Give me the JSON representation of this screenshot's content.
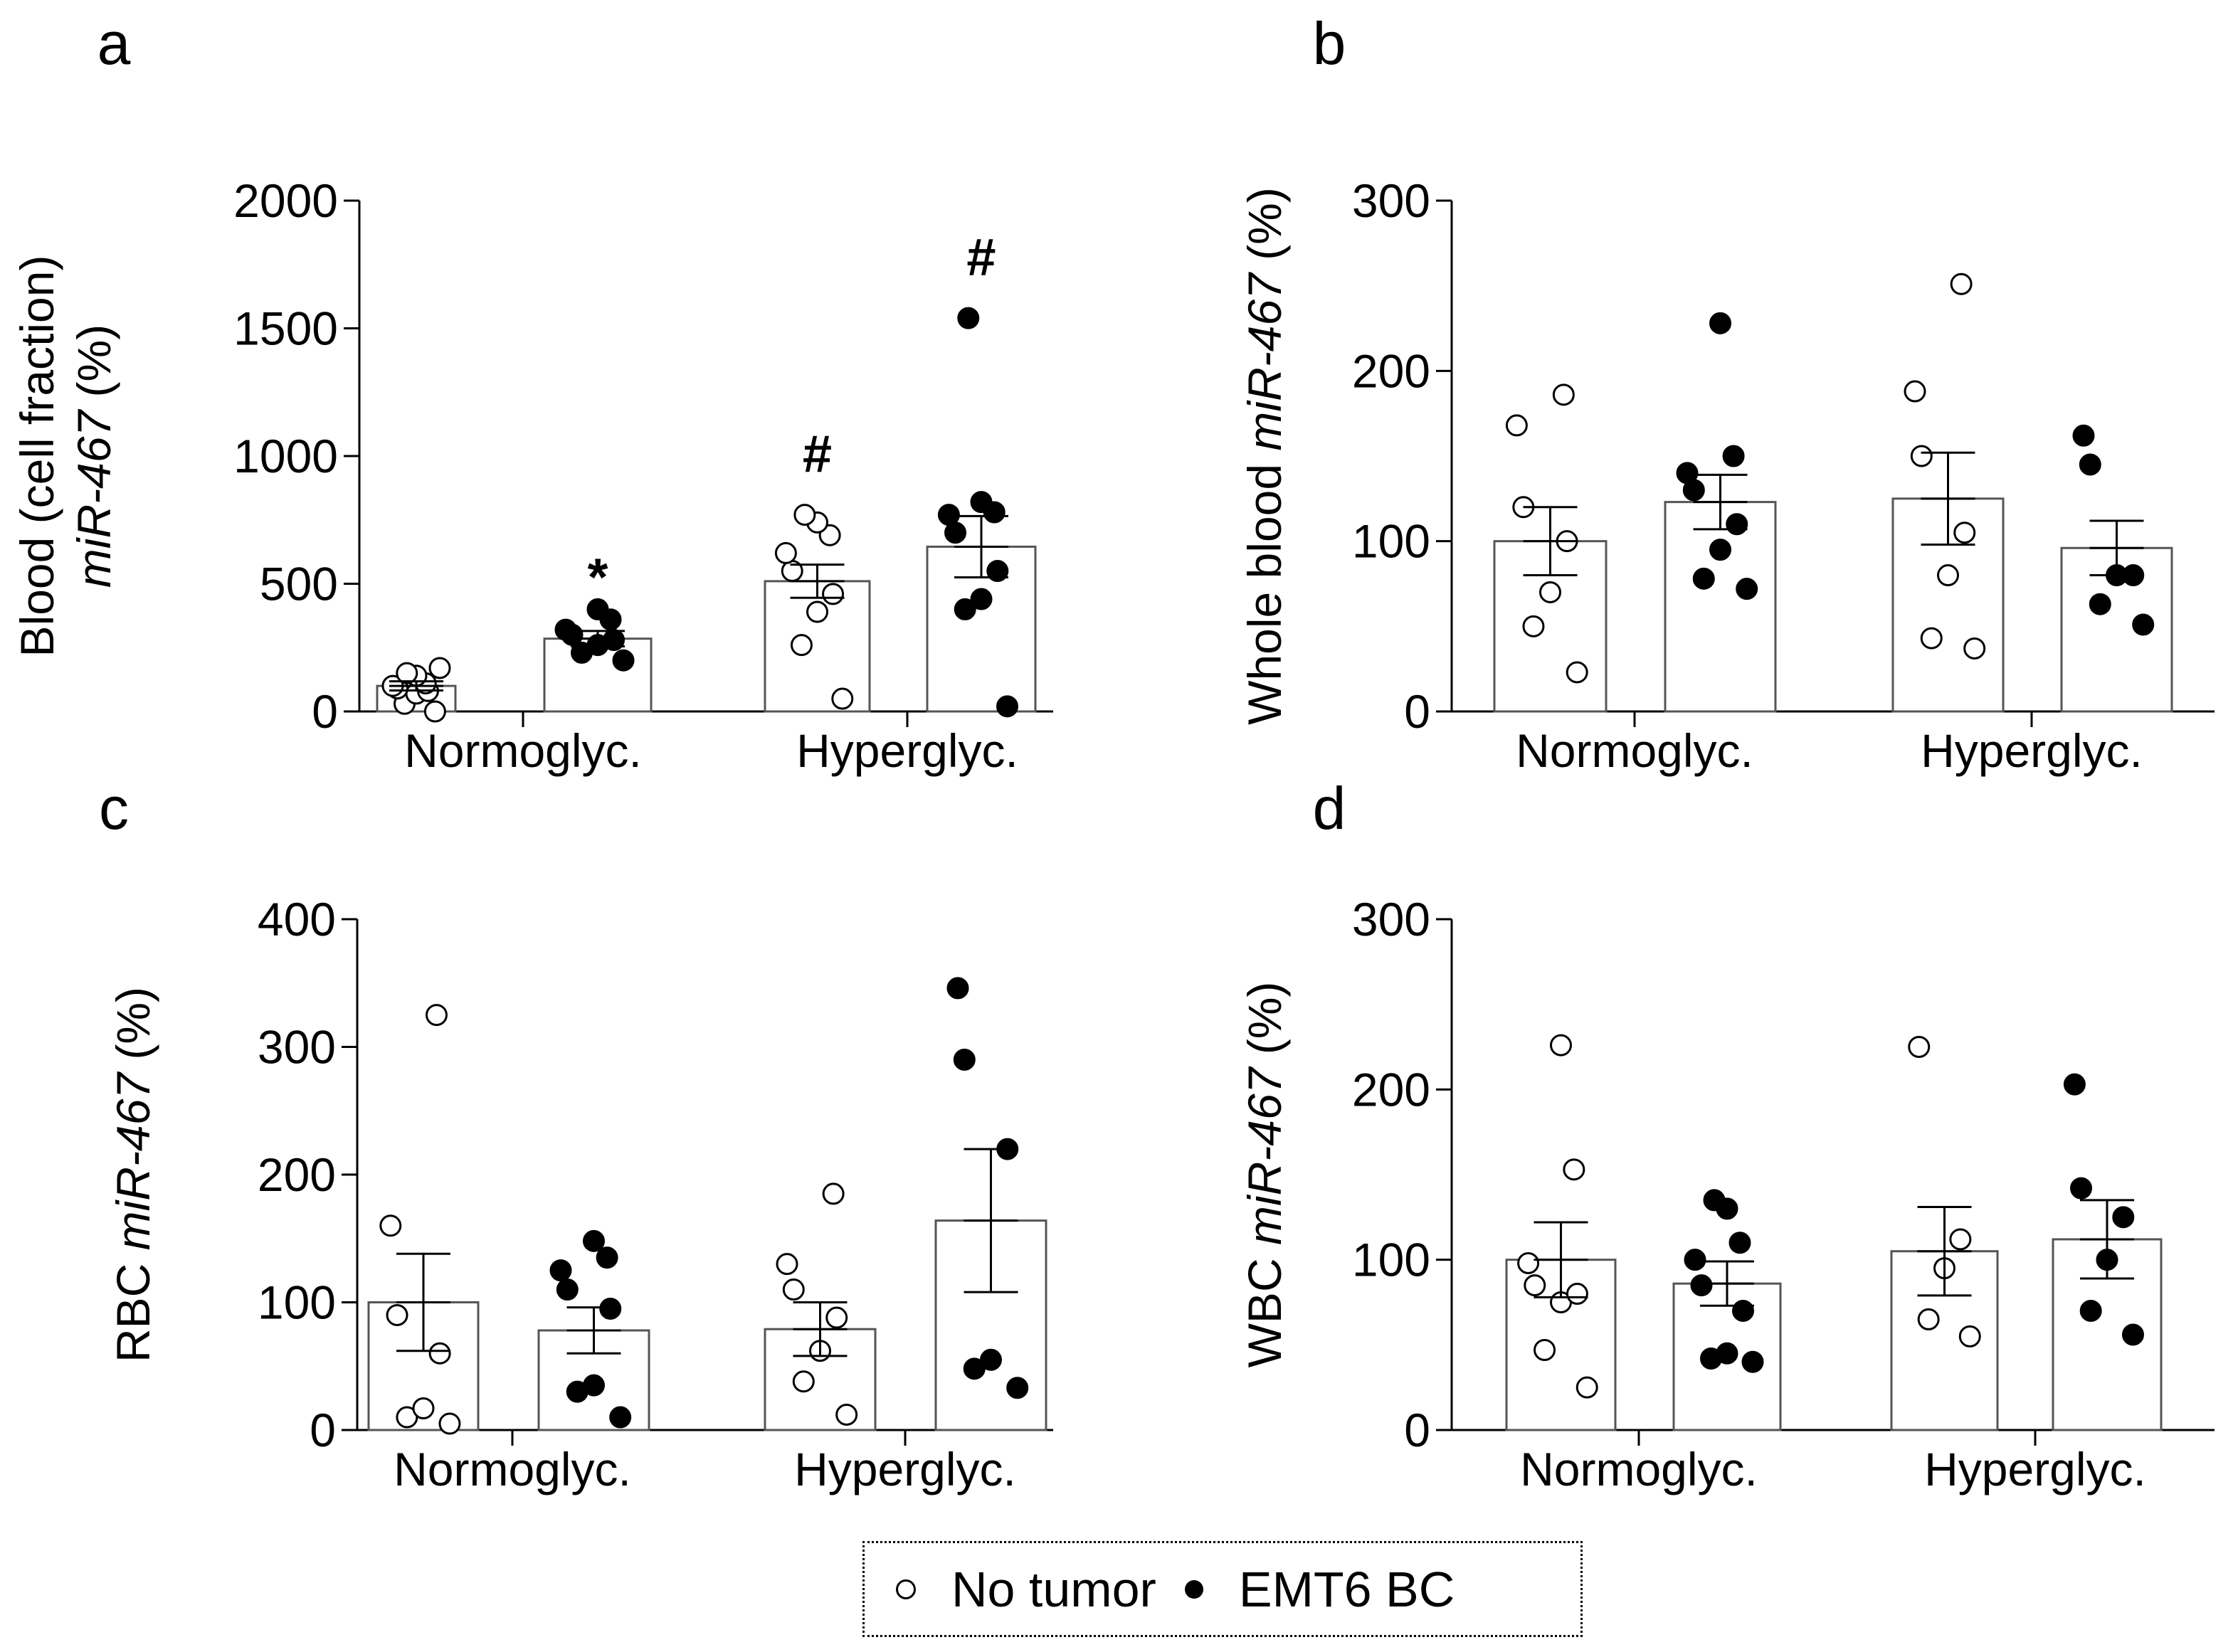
{
  "figure": {
    "legend": {
      "no_tumor": "No tumor",
      "emt6": "EMT6 BC"
    }
  },
  "chart_data": [
    {
      "panel": "a",
      "type": "bar",
      "ylabel_line1": "Blood (cell fraction)",
      "ylabel_pre": "",
      "ylabel_italic": "miR-467",
      "ylabel_post": " (%)",
      "ylim": [
        0,
        2000
      ],
      "yticks": [
        0,
        500,
        1000,
        1500,
        2000
      ],
      "categories": [
        "Normoglyc.",
        "Hyperglyc."
      ],
      "series": [
        {
          "name": "No tumor",
          "fill": "open",
          "means": [
            100,
            510
          ],
          "sem": [
            18,
            65
          ],
          "annotations": [
            "",
            "#"
          ],
          "points": [
            [
              0,
              30,
              70,
              80,
              90,
              100,
              110,
              140,
              150,
              170
            ],
            [
              50,
              260,
              390,
              460,
              550,
              620,
              690,
              740,
              770
            ]
          ]
        },
        {
          "name": "EMT6 BC",
          "fill": "filled",
          "means": [
            285,
            645
          ],
          "sem": [
            30,
            120
          ],
          "annotations": [
            "*",
            "#"
          ],
          "points": [
            [
              200,
              230,
              260,
              280,
              300,
              320,
              360,
              400
            ],
            [
              20,
              400,
              440,
              550,
              700,
              770,
              780,
              820,
              1540
            ]
          ]
        }
      ]
    },
    {
      "panel": "b",
      "type": "bar",
      "ylabel_line1": "",
      "ylabel_pre": "Whole blood ",
      "ylabel_italic": "miR-467",
      "ylabel_post": " (%)",
      "ylim": [
        0,
        300
      ],
      "yticks": [
        0,
        100,
        200,
        300
      ],
      "categories": [
        "Normoglyc.",
        "Hyperglyc."
      ],
      "series": [
        {
          "name": "No tumor",
          "fill": "open",
          "means": [
            100,
            125
          ],
          "sem": [
            20,
            27
          ],
          "annotations": [
            "",
            ""
          ],
          "points": [
            [
              23,
              50,
              70,
              100,
              120,
              168,
              186
            ],
            [
              37,
              43,
              80,
              105,
              150,
              188,
              251
            ]
          ]
        },
        {
          "name": "EMT6 BC",
          "fill": "filled",
          "means": [
            123,
            96
          ],
          "sem": [
            16,
            16
          ],
          "annotations": [
            "",
            ""
          ],
          "points": [
            [
              72,
              78,
              95,
              110,
              130,
              140,
              150,
              228
            ],
            [
              51,
              63,
              80,
              80,
              145,
              162
            ]
          ]
        }
      ]
    },
    {
      "panel": "c",
      "type": "bar",
      "ylabel_line1": "",
      "ylabel_pre": "RBC ",
      "ylabel_italic": "miR-467",
      "ylabel_post": " (%)",
      "ylim": [
        0,
        400
      ],
      "yticks": [
        0,
        100,
        200,
        300,
        400
      ],
      "categories": [
        "Normoglyc.",
        "Hyperglyc."
      ],
      "series": [
        {
          "name": "No tumor",
          "fill": "open",
          "means": [
            100,
            79
          ],
          "sem": [
            38,
            21
          ],
          "annotations": [
            "",
            ""
          ],
          "points": [
            [
              5,
              10,
              17,
              60,
              90,
              160,
              325
            ],
            [
              12,
              38,
              62,
              88,
              110,
              130,
              185
            ]
          ]
        },
        {
          "name": "EMT6 BC",
          "fill": "filled",
          "means": [
            78,
            164
          ],
          "sem": [
            18,
            56
          ],
          "annotations": [
            "",
            ""
          ],
          "points": [
            [
              10,
              30,
              35,
              95,
              110,
              125,
              135,
              148
            ],
            [
              33,
              48,
              55,
              220,
              290,
              346
            ]
          ]
        }
      ]
    },
    {
      "panel": "d",
      "type": "bar",
      "ylabel_line1": "",
      "ylabel_pre": "WBC ",
      "ylabel_italic": "miR-467",
      "ylabel_post": " (%)",
      "ylim": [
        0,
        300
      ],
      "yticks": [
        0,
        100,
        200,
        300
      ],
      "categories": [
        "Normoglyc.",
        "Hyperglyc."
      ],
      "series": [
        {
          "name": "No tumor",
          "fill": "open",
          "means": [
            100,
            105
          ],
          "sem": [
            22,
            26
          ],
          "annotations": [
            "",
            ""
          ],
          "points": [
            [
              25,
              47,
              75,
              80,
              85,
              98,
              153,
              226
            ],
            [
              55,
              65,
              95,
              112,
              225
            ]
          ]
        },
        {
          "name": "EMT6 BC",
          "fill": "filled",
          "means": [
            86,
            112
          ],
          "sem": [
            13,
            23
          ],
          "annotations": [
            "",
            ""
          ],
          "points": [
            [
              40,
              42,
              45,
              70,
              85,
              100,
              110,
              130,
              135
            ],
            [
              56,
              70,
              100,
              125,
              142,
              203
            ]
          ]
        }
      ]
    }
  ]
}
